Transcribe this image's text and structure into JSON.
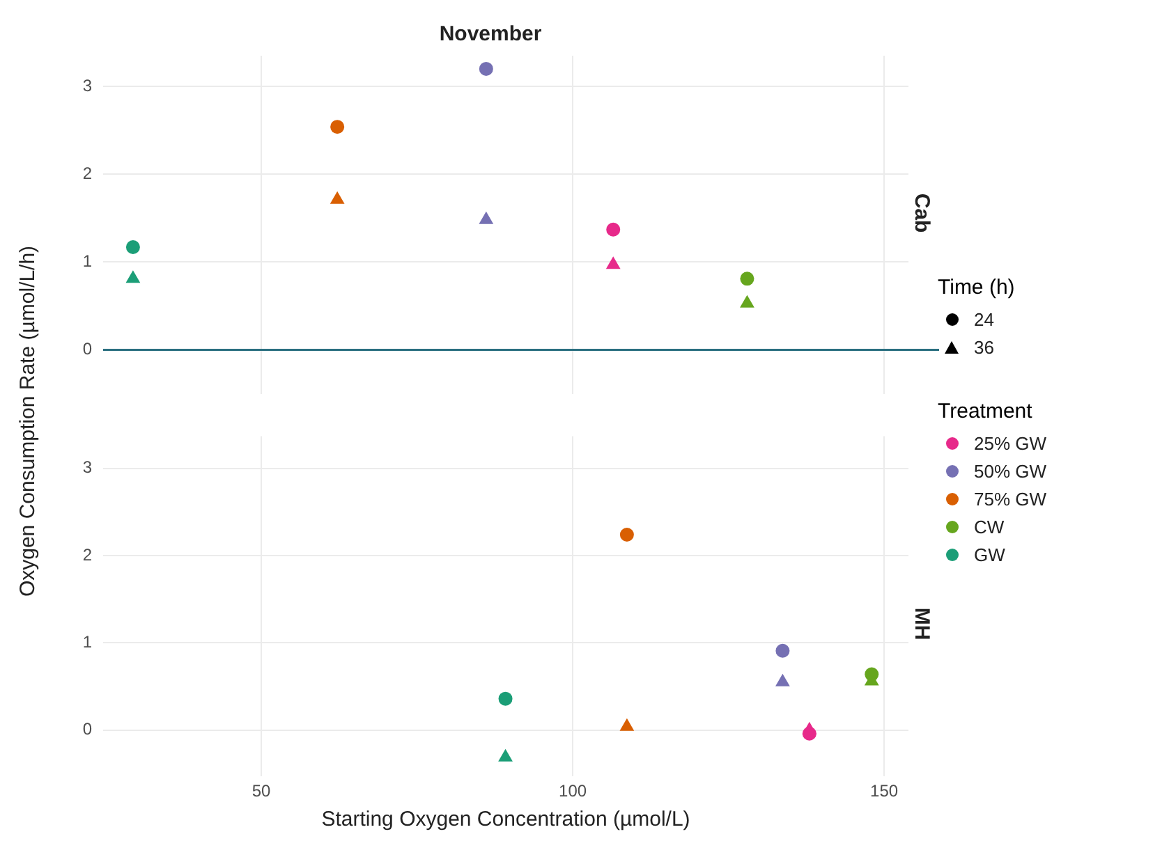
{
  "chart_data": [
    {
      "type": "scatter",
      "title": "November",
      "subtitle": "Cab",
      "ylabel": "Oxygen Consumption Rate (µmol/L/h)",
      "xlim": [
        24.6,
        153.9
      ],
      "xticks": [
        50,
        100,
        150
      ],
      "ylim": [
        -0.5,
        3.35
      ],
      "yticks": [
        0,
        1,
        2,
        3
      ],
      "grid": true,
      "tick_labels": "y",
      "legend": "right",
      "legend_title": "Treatment",
      "annotations": [
        "Time (h)",
        "24",
        "36"
      ],
      "ref_lines": [
        {
          "axis": "y",
          "value": 0,
          "color": "#2a6f80"
        }
      ],
      "series": [
        {
          "name": "25% GW",
          "color": "#e7298a",
          "marker": "circle",
          "x": [
            106.5
          ],
          "values": [
            1.37
          ]
        },
        {
          "name": "50% GW",
          "color": "#7570b3",
          "marker": "circle",
          "x": [
            86.1
          ],
          "values": [
            3.2
          ]
        },
        {
          "name": "75% GW",
          "color": "#d95f02",
          "marker": "circle",
          "x": [
            62.2
          ],
          "values": [
            2.54
          ]
        },
        {
          "name": "CW",
          "color": "#66a61e",
          "marker": "circle",
          "x": [
            128.0
          ],
          "values": [
            0.81
          ]
        },
        {
          "name": "GW",
          "color": "#1b9e77",
          "marker": "circle",
          "x": [
            29.4
          ],
          "values": [
            1.17
          ]
        },
        {
          "color": "#e7298a",
          "marker": "triangle",
          "x": [
            106.5
          ],
          "values": [
            0.97
          ]
        },
        {
          "color": "#7570b3",
          "marker": "triangle",
          "x": [
            86.1
          ],
          "values": [
            1.48
          ]
        },
        {
          "color": "#d95f02",
          "marker": "triangle",
          "x": [
            62.2
          ],
          "values": [
            1.71
          ]
        },
        {
          "color": "#66a61e",
          "marker": "triangle",
          "x": [
            128.0
          ],
          "values": [
            0.53
          ]
        },
        {
          "color": "#1b9e77",
          "marker": "triangle",
          "x": [
            29.4
          ],
          "values": [
            0.81
          ]
        }
      ]
    },
    {
      "type": "scatter",
      "subtitle": "MH",
      "xlabel": "Starting Oxygen Concentration (µmol/L)",
      "xlim": [
        24.6,
        153.9
      ],
      "xticks": [
        50,
        100,
        150
      ],
      "ylim": [
        -0.53,
        3.37
      ],
      "yticks": [
        0,
        1,
        2,
        3
      ],
      "grid": true,
      "series": [
        {
          "color": "#e7298a",
          "marker": "circle",
          "x": [
            138.0
          ],
          "values": [
            -0.04
          ]
        },
        {
          "color": "#7570b3",
          "marker": "circle",
          "x": [
            133.7
          ],
          "values": [
            0.91
          ]
        },
        {
          "color": "#d95f02",
          "marker": "circle",
          "x": [
            108.7
          ],
          "values": [
            2.24
          ]
        },
        {
          "color": "#66a61e",
          "marker": "circle",
          "x": [
            148.0
          ],
          "values": [
            0.64
          ]
        },
        {
          "color": "#1b9e77",
          "marker": "circle",
          "x": [
            89.2
          ],
          "values": [
            0.36
          ]
        },
        {
          "color": "#e7298a",
          "marker": "triangle",
          "x": [
            138.0
          ],
          "values": [
            0.0
          ]
        },
        {
          "color": "#7570b3",
          "marker": "triangle",
          "x": [
            133.7
          ],
          "values": [
            0.55
          ]
        },
        {
          "color": "#d95f02",
          "marker": "triangle",
          "x": [
            108.7
          ],
          "values": [
            0.04
          ]
        },
        {
          "color": "#66a61e",
          "marker": "triangle",
          "x": [
            148.0
          ],
          "values": [
            0.56
          ]
        },
        {
          "color": "#1b9e77",
          "marker": "triangle",
          "x": [
            89.2
          ],
          "values": [
            -0.31
          ]
        }
      ]
    }
  ]
}
